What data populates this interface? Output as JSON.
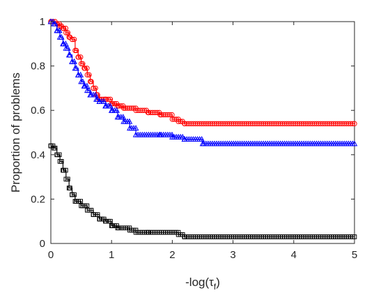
{
  "chart_data": {
    "type": "line",
    "title": "",
    "xlabel": "-log(τ_f)",
    "ylabel": "Proportion of problems",
    "xlim": [
      0,
      5
    ],
    "ylim": [
      0,
      1
    ],
    "xticks": [
      "0",
      "1",
      "2",
      "3",
      "4",
      "5"
    ],
    "yticks": [
      "0",
      "0.2",
      "0.4",
      "0.6",
      "0.8",
      "1"
    ],
    "grid": false,
    "legend": "none",
    "series": [
      {
        "color": "#ff0000",
        "marker": "circle",
        "points": [
          [
            0,
            1.0
          ],
          [
            0.1,
            0.99
          ],
          [
            0.15,
            0.98
          ],
          [
            0.2,
            0.97
          ],
          [
            0.25,
            0.95
          ],
          [
            0.3,
            0.93
          ],
          [
            0.35,
            0.92
          ],
          [
            0.4,
            0.87
          ],
          [
            0.45,
            0.84
          ],
          [
            0.5,
            0.81
          ],
          [
            0.55,
            0.79
          ],
          [
            0.6,
            0.76
          ],
          [
            0.65,
            0.73
          ],
          [
            0.7,
            0.7
          ],
          [
            0.75,
            0.67
          ],
          [
            0.8,
            0.65
          ],
          [
            0.9,
            0.65
          ],
          [
            1.0,
            0.63
          ],
          [
            1.1,
            0.62
          ],
          [
            1.2,
            0.61
          ],
          [
            1.4,
            0.6
          ],
          [
            1.6,
            0.59
          ],
          [
            1.8,
            0.58
          ],
          [
            2.0,
            0.56
          ],
          [
            2.1,
            0.55
          ],
          [
            2.2,
            0.54
          ],
          [
            5,
            0.54
          ]
        ]
      },
      {
        "color": "#0000ff",
        "marker": "triangle",
        "points": [
          [
            0,
            1.0
          ],
          [
            0.05,
            0.99
          ],
          [
            0.1,
            0.96
          ],
          [
            0.15,
            0.93
          ],
          [
            0.2,
            0.9
          ],
          [
            0.25,
            0.88
          ],
          [
            0.3,
            0.85
          ],
          [
            0.35,
            0.82
          ],
          [
            0.4,
            0.79
          ],
          [
            0.45,
            0.76
          ],
          [
            0.5,
            0.73
          ],
          [
            0.55,
            0.71
          ],
          [
            0.6,
            0.69
          ],
          [
            0.65,
            0.67
          ],
          [
            0.75,
            0.65
          ],
          [
            0.8,
            0.64
          ],
          [
            0.9,
            0.62
          ],
          [
            1.0,
            0.6
          ],
          [
            1.1,
            0.57
          ],
          [
            1.2,
            0.55
          ],
          [
            1.3,
            0.52
          ],
          [
            1.4,
            0.49
          ],
          [
            1.8,
            0.49
          ],
          [
            2.0,
            0.48
          ],
          [
            2.2,
            0.47
          ],
          [
            2.5,
            0.45
          ],
          [
            5,
            0.45
          ]
        ]
      },
      {
        "color": "#000000",
        "marker": "square",
        "points": [
          [
            0,
            0.44
          ],
          [
            0.05,
            0.43
          ],
          [
            0.1,
            0.4
          ],
          [
            0.15,
            0.37
          ],
          [
            0.2,
            0.33
          ],
          [
            0.25,
            0.29
          ],
          [
            0.3,
            0.25
          ],
          [
            0.35,
            0.22
          ],
          [
            0.4,
            0.19
          ],
          [
            0.5,
            0.17
          ],
          [
            0.6,
            0.15
          ],
          [
            0.7,
            0.13
          ],
          [
            0.8,
            0.11
          ],
          [
            0.9,
            0.1
          ],
          [
            1.0,
            0.08
          ],
          [
            1.1,
            0.07
          ],
          [
            1.3,
            0.06
          ],
          [
            1.4,
            0.05
          ],
          [
            1.6,
            0.05
          ],
          [
            2.1,
            0.04
          ],
          [
            2.2,
            0.03
          ],
          [
            5,
            0.03
          ]
        ]
      }
    ]
  }
}
